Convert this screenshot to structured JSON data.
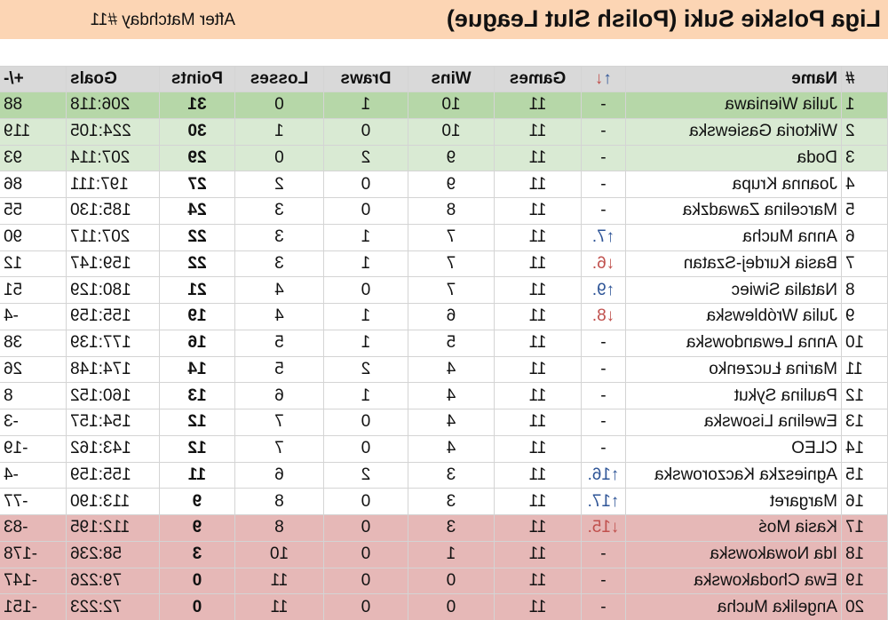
{
  "header": {
    "title": "Liga Polskie Suki (Polish Slut League)",
    "subtitle": "After Matchday #11"
  },
  "table": {
    "columns": [
      "#",
      "Name",
      [
        "↑",
        "↓"
      ],
      "Games",
      "Wins",
      "Draws",
      "Losses",
      "Points",
      "Goals",
      "+/-"
    ],
    "rows": [
      [
        1,
        "Julia Wieniawa",
        "-",
        11,
        10,
        1,
        0,
        31,
        "206:118",
        88
      ],
      [
        2,
        "Wiktoria Gasiewska",
        "-",
        11,
        10,
        0,
        1,
        30,
        "224:105",
        119
      ],
      [
        3,
        "Doda",
        "-",
        11,
        9,
        2,
        0,
        29,
        "207:114",
        93
      ],
      [
        4,
        "Joanna Krupa",
        "-",
        11,
        9,
        0,
        2,
        27,
        "197:111",
        86
      ],
      [
        5,
        "Marcelina Zawadzka",
        "-",
        11,
        8,
        0,
        3,
        24,
        "185:130",
        55
      ],
      [
        6,
        "Anna Mucha",
        "↑7.",
        11,
        7,
        1,
        3,
        22,
        "207:117",
        90
      ],
      [
        7,
        "Basia Kurdej-Szatan",
        "↓6.",
        11,
        7,
        1,
        3,
        22,
        "159:147",
        12
      ],
      [
        8,
        "Natalia Siwiec",
        "↑9.",
        11,
        7,
        0,
        4,
        21,
        "180:129",
        51
      ],
      [
        9,
        "Julia Wróblewska",
        "↓8.",
        11,
        6,
        1,
        4,
        19,
        "155:159",
        -4
      ],
      [
        10,
        "Anna Lewandowska",
        "-",
        11,
        5,
        1,
        5,
        16,
        "177:139",
        38
      ],
      [
        11,
        "Marina Łuczenko",
        "-",
        11,
        4,
        2,
        5,
        14,
        "174:148",
        26
      ],
      [
        12,
        "Paulina Sykut",
        "-",
        11,
        4,
        1,
        6,
        13,
        "160:152",
        8
      ],
      [
        13,
        "Ewelina Lisowska",
        "-",
        11,
        4,
        0,
        7,
        12,
        "154:157",
        -3
      ],
      [
        14,
        "CLEO",
        "-",
        11,
        4,
        0,
        7,
        12,
        "143:162",
        -19
      ],
      [
        15,
        "Agnieszka Kaczorowska",
        "↑16.",
        11,
        3,
        2,
        6,
        11,
        "155:159",
        -4
      ],
      [
        16,
        "Margaret",
        "↑17.",
        11,
        3,
        0,
        8,
        9,
        "113:190",
        -77
      ],
      [
        17,
        "Kasia Moś",
        "↓15.",
        11,
        3,
        0,
        8,
        9,
        "112:195",
        -83
      ],
      [
        18,
        "Ida Nowakowska",
        "-",
        11,
        1,
        0,
        10,
        3,
        "58:236",
        -178
      ],
      [
        19,
        "Ewa Chodakowska",
        "-",
        11,
        0,
        0,
        11,
        0,
        "79:226",
        -147
      ],
      [
        20,
        "Angelika Mucha",
        "-",
        11,
        0,
        0,
        11,
        0,
        "72:223",
        -151
      ]
    ]
  }
}
